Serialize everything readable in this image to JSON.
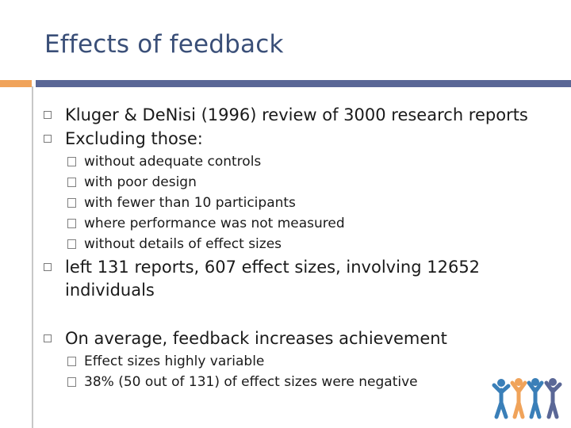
{
  "slide": {
    "title": "Effects of feedback",
    "items": [
      {
        "text": "Kluger & DeNisi (1996) review of 3000 research reports"
      },
      {
        "text": "Excluding those:"
      }
    ],
    "excluded": [
      "without adequate controls",
      "with poor design",
      "with fewer than 10 participants",
      "where performance was not measured",
      "without details of effect sizes"
    ],
    "result": "left 131 reports, 607 effect sizes, involving 12652 individuals",
    "conclusion": "On average, feedback increases achievement",
    "details": [
      "Effect sizes highly variable",
      "38% (50 out of 131) of effect sizes were negative"
    ]
  },
  "colors": {
    "title": "#3a4f78",
    "accent_orange": "#f0a35a",
    "accent_blue": "#5a6796",
    "logo_colors": [
      "#3a7fb8",
      "#f0a35a",
      "#3a7fb8",
      "#5a6796"
    ]
  },
  "icons": [
    "square-bullet-icon",
    "people-group-logo"
  ]
}
